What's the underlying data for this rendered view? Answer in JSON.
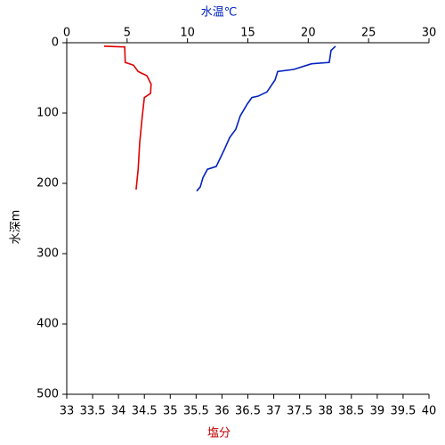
{
  "chart_data": {
    "type": "line",
    "x_label": "塩分",
    "x_label_color": "#c00000",
    "x2_label": "水温℃",
    "x2_label_color": "#0020c0",
    "y_label": "水深m",
    "xlim": [
      33,
      40
    ],
    "xticks": [
      33,
      33.5,
      34,
      34.5,
      35,
      35.5,
      36,
      36.5,
      37,
      37.5,
      38,
      38.5,
      39,
      39.5,
      40
    ],
    "x2lim": [
      0,
      30
    ],
    "x2ticks": [
      0,
      5,
      10,
      15,
      20,
      25,
      30
    ],
    "ylim": [
      0,
      500
    ],
    "yticks": [
      0,
      100,
      200,
      300,
      400,
      500
    ],
    "y_inverted": true,
    "series": [
      {
        "color": "#e00000",
        "xaxis": "x",
        "x": [
          33.72,
          34.12,
          34.13,
          34.29,
          34.38,
          34.55,
          34.63,
          34.62,
          34.5,
          34.46,
          34.41,
          34.38,
          34.34
        ],
        "values": [
          5,
          6,
          28,
          32,
          41,
          47,
          59,
          72,
          78,
          104,
          142,
          180,
          209
        ]
      },
      {
        "color": "#0020c0",
        "xaxis": "x2",
        "x": [
          22.26,
          21.89,
          21.74,
          20.27,
          18.8,
          17.47,
          17.25,
          16.58,
          15.85,
          15.33,
          14.96,
          14.37,
          14.0,
          13.49,
          13.05,
          12.38,
          11.65,
          11.28,
          11.06,
          10.76
        ],
        "values": [
          5,
          11,
          28,
          30,
          38,
          41,
          53,
          70,
          76,
          78,
          87,
          104,
          123,
          135,
          152,
          176,
          180,
          192,
          205,
          211
        ]
      }
    ]
  }
}
